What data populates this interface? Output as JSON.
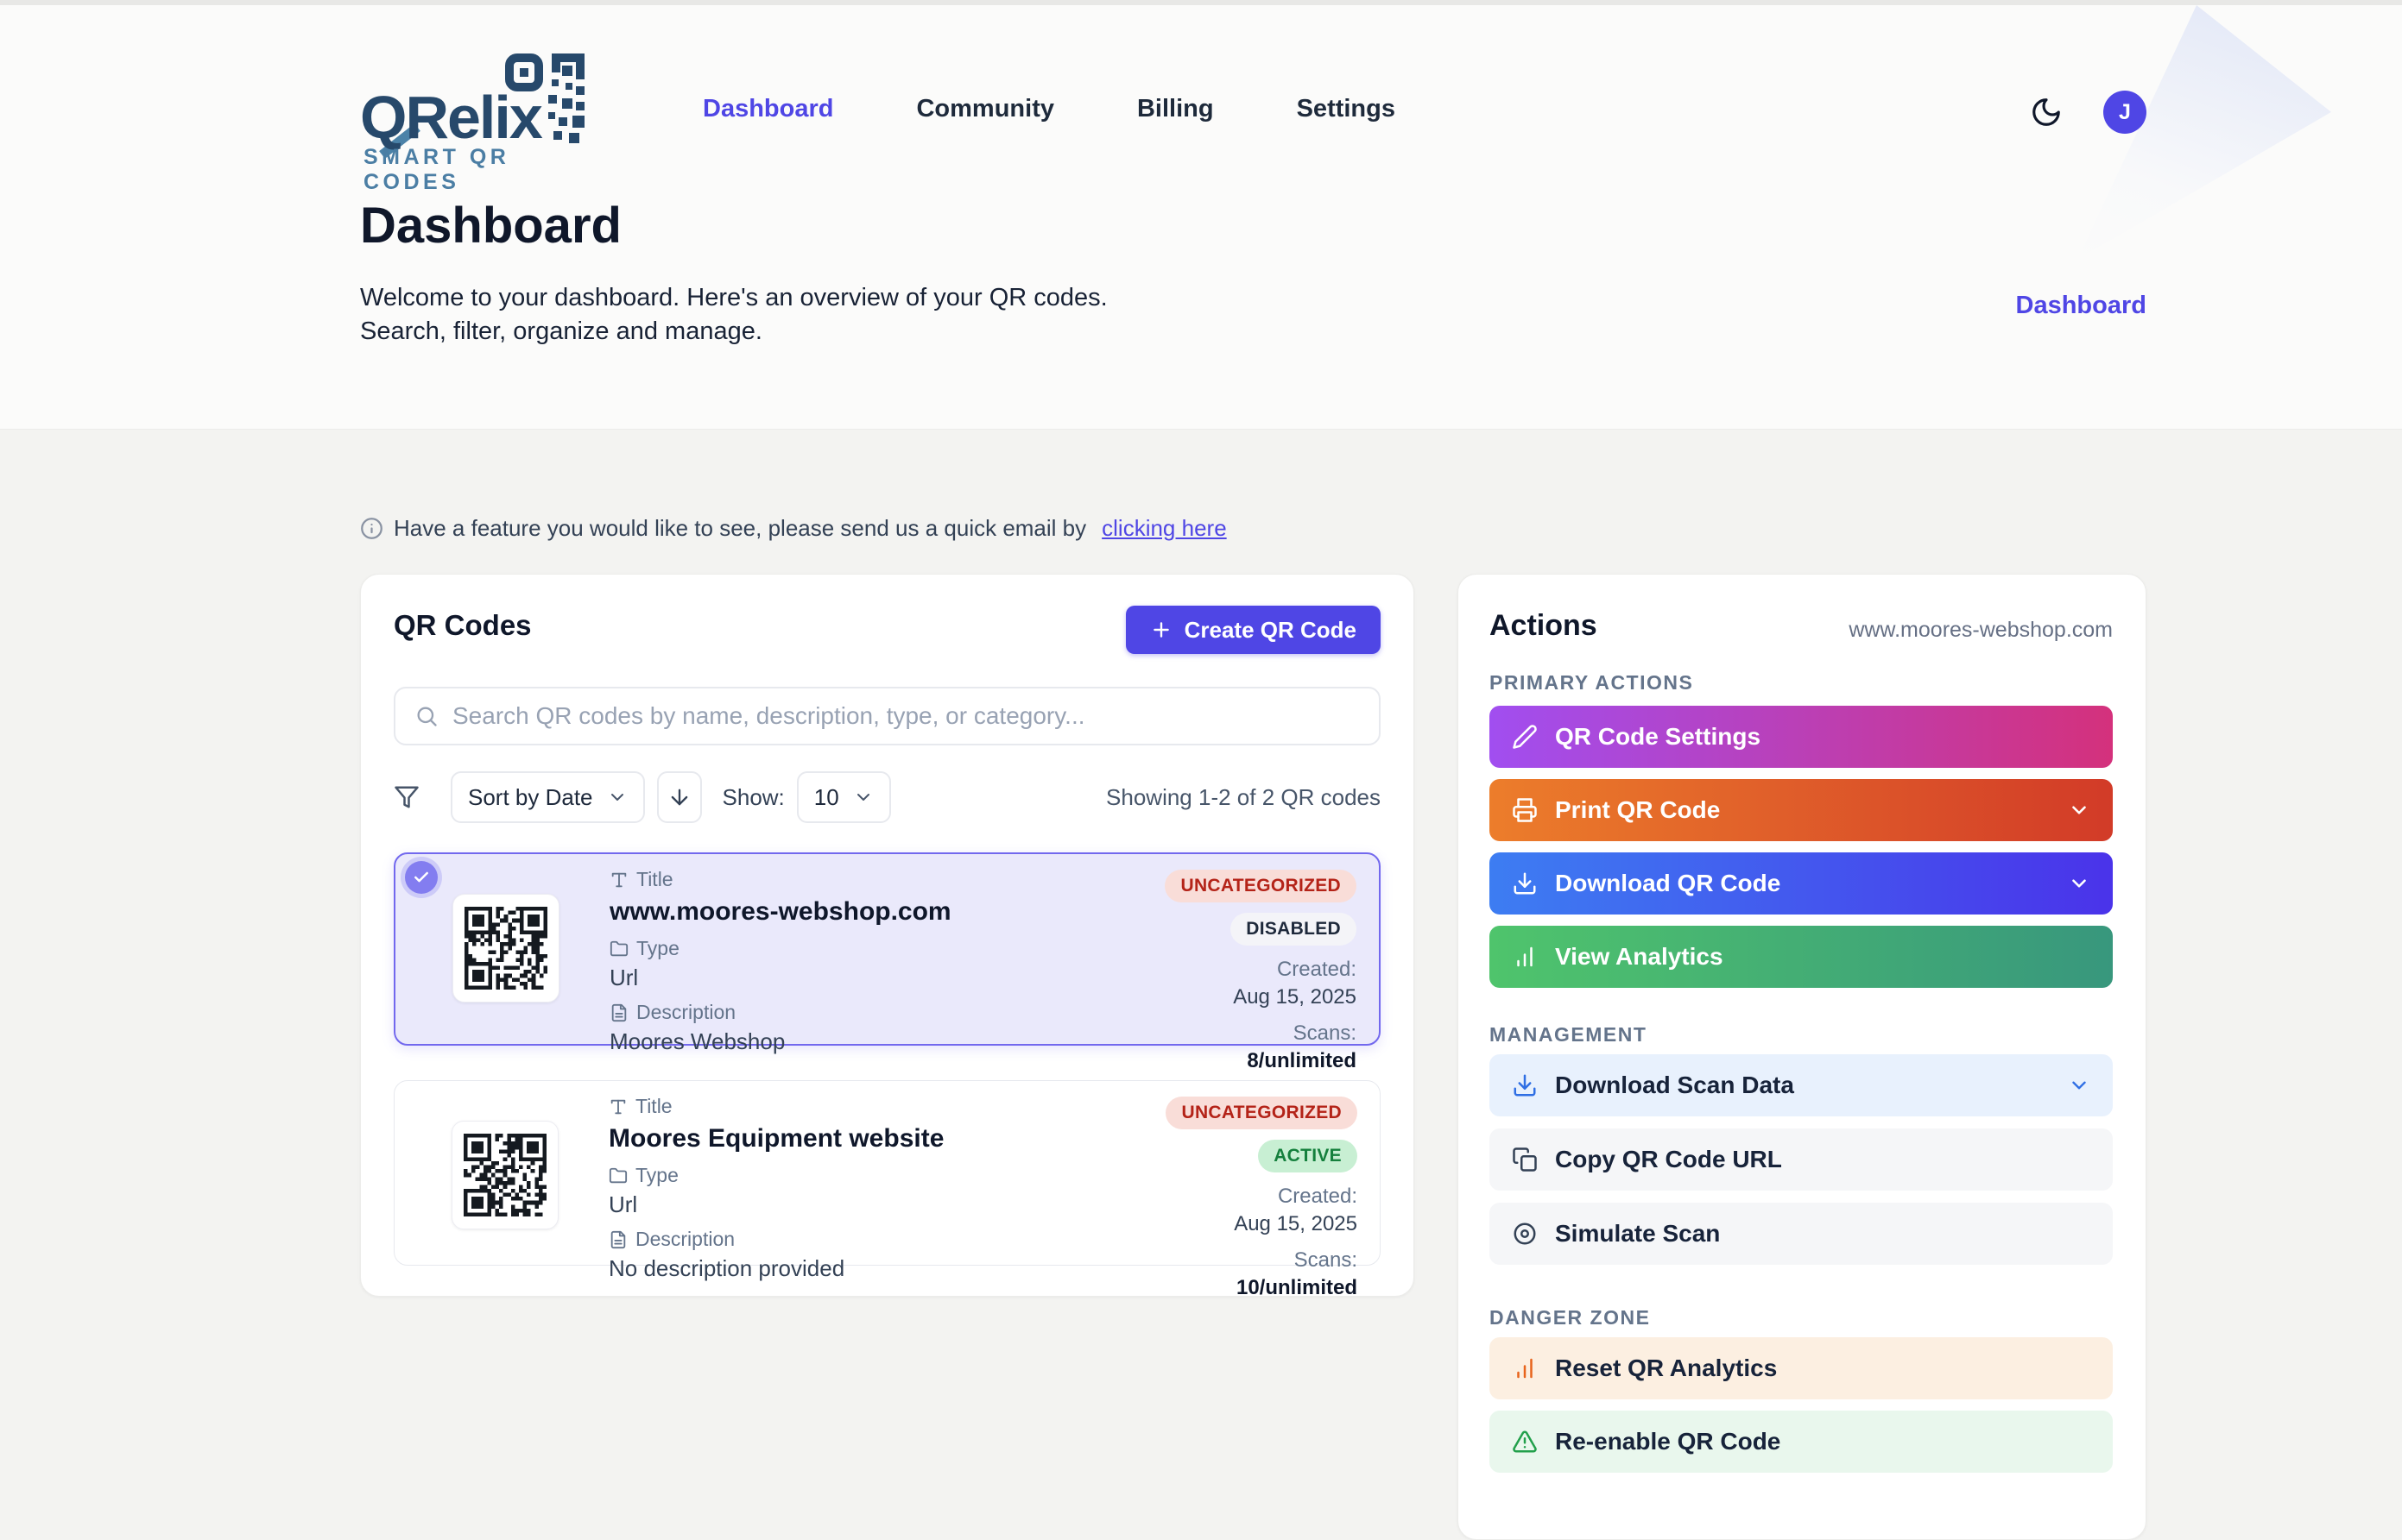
{
  "colors": {
    "accent": "#4f46e5",
    "brand_navy": "#27496b",
    "brand_teal": "#4b7ea4",
    "page_bg": "#f3f3f1",
    "hero_bg": "#fbfbfa",
    "category_badge_bg": "#f9ddd8",
    "category_badge_text": "#b42318",
    "status_disabled_bg": "#f4f4f8",
    "status_disabled_text": "#1e293b",
    "status_active_bg": "#c8efd3",
    "status_active_text": "#15803d",
    "selected_card_bg": "#eae9fb",
    "selected_card_border": "#7268ee",
    "gradient_settings": [
      "#a14ef0",
      "#d4317c"
    ],
    "gradient_print": [
      "#ec7d2b",
      "#d23b28"
    ],
    "gradient_download": [
      "#3d7df2",
      "#4a33ea"
    ],
    "gradient_analytics": [
      "#4fc46c",
      "#38977d"
    ]
  },
  "brand": {
    "name": "QRelix",
    "tagline": "SMART QR CODES"
  },
  "nav": {
    "items": [
      {
        "label": "Dashboard",
        "active": true
      },
      {
        "label": "Community",
        "active": false
      },
      {
        "label": "Billing",
        "active": false
      },
      {
        "label": "Settings",
        "active": false
      }
    ]
  },
  "header": {
    "avatar_initial": "J",
    "breadcrumb": "Dashboard"
  },
  "hero": {
    "title": "Dashboard",
    "line1": "Welcome to your dashboard. Here's an overview of your QR codes.",
    "line2": "Search, filter, organize and manage."
  },
  "notice": {
    "text": "Have a feature you would like to see, please send us a quick email by",
    "link_text": "clicking here"
  },
  "qr_panel": {
    "title": "QR Codes",
    "create_button": "Create QR Code",
    "search_placeholder": "Search QR codes by name, description, type, or category...",
    "sort_value": "Sort by Date",
    "show_label": "Show:",
    "show_value": "10",
    "results_text": "Showing 1-2 of 2 QR codes",
    "field_labels": {
      "title": "Title",
      "type": "Type",
      "description": "Description",
      "created": "Created:",
      "scans": "Scans:"
    },
    "cards": [
      {
        "title": "www.moores-webshop.com",
        "type": "Url",
        "description": "Moores Webshop",
        "category": "UNCATEGORIZED",
        "status": "DISABLED",
        "created": "Aug 15, 2025",
        "scans": "8/unlimited",
        "selected": true
      },
      {
        "title": "Moores Equipment website",
        "type": "Url",
        "description": "No description provided",
        "category": "UNCATEGORIZED",
        "status": "ACTIVE",
        "created": "Aug 15, 2025",
        "scans": "10/unlimited",
        "selected": false
      }
    ]
  },
  "actions_panel": {
    "title": "Actions",
    "context": "www.moores-webshop.com",
    "primary_label": "PRIMARY ACTIONS",
    "primary": [
      {
        "label": "QR Code Settings"
      },
      {
        "label": "Print QR Code"
      },
      {
        "label": "Download QR Code"
      },
      {
        "label": "View Analytics"
      }
    ],
    "management_label": "MANAGEMENT",
    "management": [
      {
        "label": "Download Scan Data"
      },
      {
        "label": "Copy QR Code URL"
      },
      {
        "label": "Simulate Scan"
      }
    ],
    "danger_label": "DANGER ZONE",
    "danger": [
      {
        "label": "Reset QR Analytics"
      },
      {
        "label": "Re-enable QR Code"
      }
    ]
  }
}
